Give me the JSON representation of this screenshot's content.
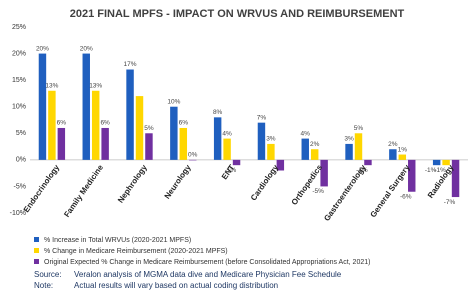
{
  "chart_data": {
    "type": "bar",
    "title": "2021 FINAL MPFS - IMPACT ON WRVUS AND REIMBURSEMENT",
    "categories": [
      "Endocrinology",
      "Family Medicine",
      "Nephrology",
      "Neurology",
      "ENT",
      "Cardiology",
      "Orthopedics",
      "Gastroenterology",
      "General Surgery",
      "Radiology"
    ],
    "series": [
      {
        "name": "% Increase in Total WRVUs (2020-2021 MPFS)",
        "color": "#1f5fbf",
        "values": [
          20,
          20,
          17,
          10,
          8,
          7,
          4,
          3,
          2,
          -1
        ],
        "value_labels": [
          "20%",
          "20%",
          "17%",
          "10%",
          "8%",
          "7%",
          "4%",
          "3%",
          "2%",
          "-1%"
        ]
      },
      {
        "name": "% Change in Medicare Reimbursement (2020-2021 MPFS)",
        "color": "#ffd700",
        "values": [
          13,
          13,
          12,
          6,
          4,
          3,
          2,
          5,
          1,
          -1
        ],
        "value_labels": [
          "13%",
          "13%",
          null,
          "6%",
          "4%",
          "3%",
          "2%",
          "5%",
          "1%",
          "-1%"
        ]
      },
      {
        "name": "Original Expected % Change in Medicare Reimbursement (before Consolidated Appropriations Act, 2021)",
        "color": "#7030a0",
        "values": [
          6,
          6,
          5,
          0,
          -1,
          -2,
          -5,
          -1,
          -6,
          -7
        ],
        "value_labels": [
          "6%",
          "6%",
          "5%",
          "0%",
          "-1%",
          null,
          "-5%",
          "-1%",
          "-6%",
          "-7%"
        ]
      }
    ],
    "ylim": [
      -10,
      25
    ],
    "yticks": [
      {
        "value": -10,
        "label": "-10%"
      },
      {
        "value": -5,
        "label": "-5%"
      },
      {
        "value": 0,
        "label": "0%"
      },
      {
        "value": 5,
        "label": "5%"
      },
      {
        "value": 10,
        "label": "10%"
      },
      {
        "value": 15,
        "label": "15%"
      },
      {
        "value": 20,
        "label": "20%"
      },
      {
        "value": 25,
        "label": "25%"
      }
    ],
    "source_label": "Source:",
    "source": "Veralon analysis of MGMA data dive and Medicare Physician Fee Schedule",
    "note_label": "Note:",
    "note": "Actual results will vary based on actual coding distribution"
  }
}
